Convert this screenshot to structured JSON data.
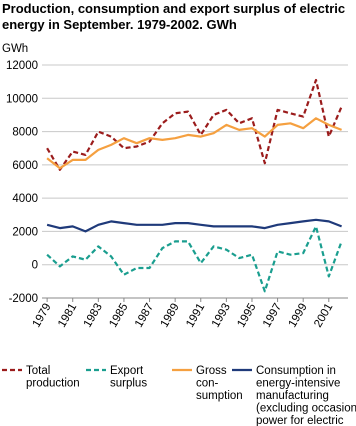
{
  "chart_data": {
    "type": "line",
    "title": "Production, consumption and export surplus of electric energy in September. 1979-2002. GWh",
    "ylabel": "GWh",
    "x": [
      1979,
      1980,
      1981,
      1982,
      1983,
      1984,
      1985,
      1986,
      1987,
      1988,
      1989,
      1990,
      1991,
      1992,
      1993,
      1994,
      1995,
      1996,
      1997,
      1998,
      1999,
      2000,
      2001,
      2002
    ],
    "series": [
      {
        "name": "Total\nproduction",
        "color": "#9b1c1c",
        "dash": true,
        "values": [
          7000,
          5700,
          6800,
          6600,
          8000,
          7700,
          7000,
          7100,
          7400,
          8500,
          9100,
          9200,
          7800,
          9000,
          9300,
          8500,
          8800,
          6100,
          9300,
          9100,
          8900,
          11100,
          7700,
          9500
        ]
      },
      {
        "name": "Export\nsurplus",
        "color": "#1a9e8f",
        "dash": true,
        "values": [
          600,
          -100,
          500,
          300,
          1100,
          500,
          -600,
          -200,
          -200,
          1000,
          1400,
          1400,
          100,
          1100,
          900,
          400,
          600,
          -1600,
          800,
          600,
          700,
          2300,
          -700,
          1400
        ]
      },
      {
        "name": "Gross\ncon-\nsumption",
        "color": "#f5a040",
        "dash": false,
        "values": [
          6400,
          5800,
          6300,
          6300,
          6900,
          7200,
          7600,
          7300,
          7600,
          7500,
          7600,
          7800,
          7700,
          7900,
          8400,
          8100,
          8200,
          7700,
          8400,
          8500,
          8200,
          8800,
          8400,
          8100
        ]
      },
      {
        "name": "Consumption in\nenergy-intensive\nmanufacturing\n(excluding occasional\npower for electric\nboilers)",
        "color": "#1f3a7a",
        "dash": false,
        "values": [
          2400,
          2200,
          2300,
          2000,
          2400,
          2600,
          2500,
          2400,
          2400,
          2400,
          2500,
          2500,
          2400,
          2300,
          2300,
          2300,
          2300,
          2200,
          2400,
          2500,
          2600,
          2700,
          2600,
          2300
        ]
      }
    ],
    "xlim": [
      1978.6,
      2002.5
    ],
    "xticks": [
      1979,
      1981,
      1983,
      1985,
      1987,
      1989,
      1991,
      1993,
      1995,
      1997,
      1999,
      2001
    ],
    "ylim": [
      -2000,
      12000
    ],
    "yticks": [
      -2000,
      0,
      2000,
      4000,
      6000,
      8000,
      10000,
      12000
    ],
    "grid": true
  }
}
